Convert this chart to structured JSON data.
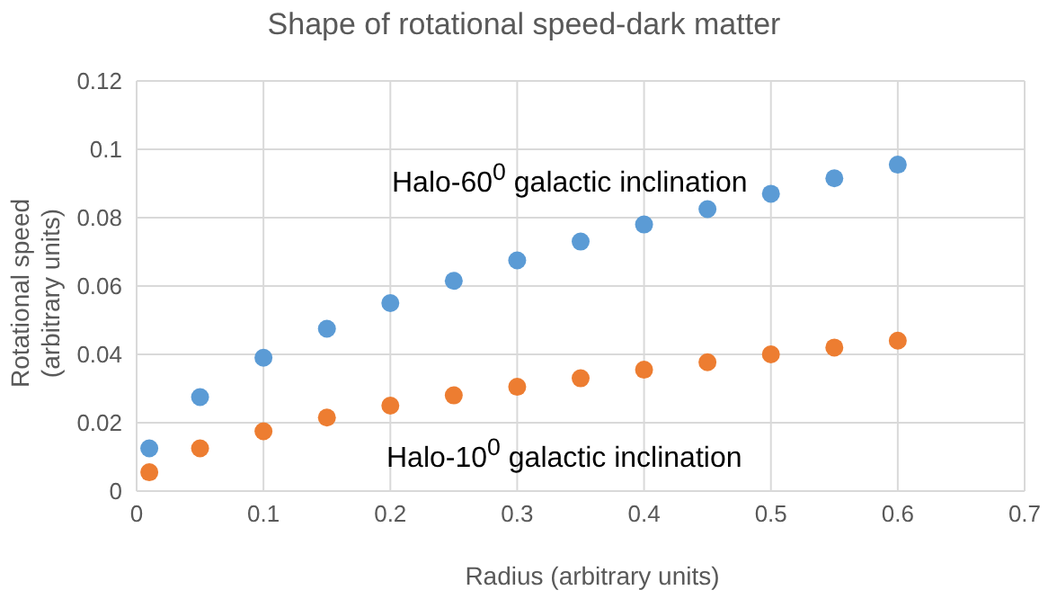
{
  "chart_data": {
    "type": "scatter",
    "title": "Shape of rotational speed-dark matter",
    "xlabel": "Radius (arbitrary units)",
    "ylabel": "Rotational speed (arbitrary units)",
    "x": [
      0.01,
      0.05,
      0.1,
      0.15,
      0.2,
      0.25,
      0.3,
      0.35,
      0.4,
      0.45,
      0.5,
      0.55,
      0.6
    ],
    "series": [
      {
        "name": "Halo-60$^{0}$ galactic inclination",
        "color": "#5b9bd5",
        "values": [
          0.0125,
          0.0275,
          0.039,
          0.0475,
          0.055,
          0.0615,
          0.0675,
          0.073,
          0.078,
          0.0825,
          0.087,
          0.0915,
          0.0955
        ]
      },
      {
        "name": "Halo-10$^{0}$ galactic inclination",
        "color": "#ed7d31",
        "values": [
          0.0055,
          0.0125,
          0.0175,
          0.0215,
          0.025,
          0.028,
          0.0305,
          0.033,
          0.0355,
          0.0377,
          0.04,
          0.042,
          0.044
        ]
      }
    ],
    "xlim": [
      0,
      0.7
    ],
    "xticks": [
      0,
      0.1,
      0.2,
      0.3,
      0.4,
      0.5,
      0.6,
      0.7
    ],
    "ylim": [
      0,
      0.12
    ],
    "yticks": [
      0,
      0.02,
      0.04,
      0.06,
      0.08,
      0.1,
      0.12
    ],
    "grid": true,
    "marker": "circle"
  }
}
